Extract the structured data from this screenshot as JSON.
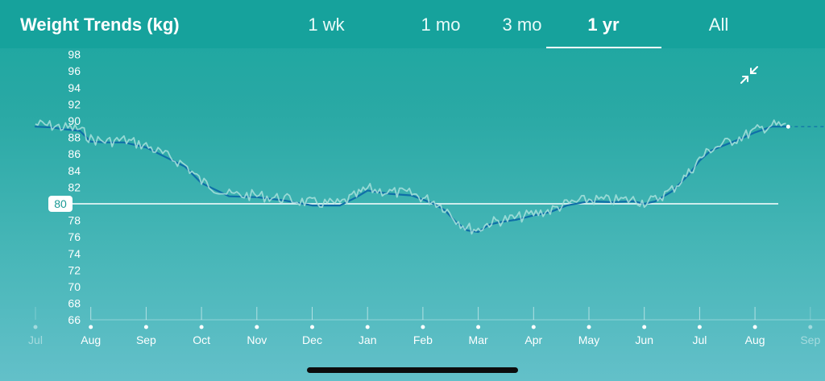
{
  "header": {
    "title": "Weight Trends (kg)",
    "tabs": [
      {
        "label": "1 wk",
        "active": false
      },
      {
        "label": "1 mo",
        "active": false
      },
      {
        "label": "3 mo",
        "active": false
      },
      {
        "label": "1 yr",
        "active": true
      },
      {
        "label": "All",
        "active": false
      }
    ]
  },
  "controls": {
    "collapse_icon": "collapse-arrows-icon"
  },
  "colors": {
    "background_top": "#1aa69f",
    "background_bottom": "#63c0c9",
    "trend_line": "#0f6fa8",
    "raw_line": "#a8e0dc",
    "goal_line": "#ffffff",
    "goal_label_text": "#1b9a95"
  },
  "chart_data": {
    "type": "line",
    "ylim": [
      65,
      99
    ],
    "y_ticks": [
      66,
      68,
      70,
      72,
      74,
      76,
      78,
      80,
      82,
      84,
      86,
      88,
      90,
      92,
      94,
      96,
      98
    ],
    "x_ticks": [
      "Jul",
      "Aug",
      "Sep",
      "Oct",
      "Nov",
      "Dec",
      "Jan",
      "Feb",
      "Mar",
      "Apr",
      "May",
      "Jun",
      "Jul",
      "Aug",
      "Sep"
    ],
    "x_ticks_faded": [
      0,
      14
    ],
    "goal": {
      "value": 80,
      "label": "80"
    },
    "series": [
      {
        "style": "trend",
        "x": [
          0,
          0.3,
          0.5,
          0.8,
          1.0,
          1.3,
          1.6,
          2.0,
          2.3,
          2.7,
          3.0,
          3.5,
          4.0,
          4.5,
          5.0,
          5.5,
          5.8,
          6.0,
          6.4,
          6.8,
          7.0,
          7.2,
          7.4,
          7.6,
          7.8,
          8.0,
          8.2,
          8.4,
          8.7,
          9.0,
          9.3,
          9.6,
          10.0,
          10.4,
          10.8,
          11.0,
          11.2,
          11.5,
          11.8,
          12.0,
          12.2,
          12.5,
          12.8,
          13.0,
          13.3,
          13.6
        ],
        "values": [
          89.3,
          89.2,
          89.0,
          88.8,
          87.5,
          87.4,
          87.4,
          86.8,
          85.8,
          84.5,
          82.5,
          80.9,
          80.8,
          80.4,
          79.8,
          79.8,
          80.8,
          81.6,
          81.2,
          81.0,
          80.5,
          80.0,
          79.2,
          77.8,
          76.8,
          76.6,
          77.5,
          77.8,
          78.1,
          78.6,
          79.0,
          79.8,
          80.3,
          80.2,
          80.3,
          80.0,
          80.3,
          81.5,
          83.5,
          85.2,
          86.4,
          87.2,
          88.0,
          88.6,
          89.3,
          89.3
        ]
      },
      {
        "style": "raw",
        "x": [
          0,
          0.3,
          0.5,
          0.8,
          1.0,
          1.3,
          1.6,
          2.0,
          2.3,
          2.7,
          3.0,
          3.5,
          4.0,
          4.5,
          5.0,
          5.5,
          5.8,
          6.0,
          6.4,
          6.8,
          7.0,
          7.2,
          7.4,
          7.6,
          7.8,
          8.0,
          8.2,
          8.4,
          8.7,
          9.0,
          9.3,
          9.6,
          10.0,
          10.4,
          10.8,
          11.0,
          11.2,
          11.5,
          11.8,
          12.0,
          12.2,
          12.5,
          12.8,
          13.0,
          13.3,
          13.6
        ],
        "values": [
          89.6,
          89.4,
          89.2,
          89.0,
          87.8,
          87.5,
          87.7,
          87.0,
          86.0,
          84.7,
          82.7,
          81.1,
          81.0,
          80.6,
          80.1,
          80.0,
          81.0,
          81.8,
          81.4,
          81.2,
          80.7,
          80.3,
          79.5,
          78.1,
          77.1,
          76.9,
          77.7,
          78.0,
          78.3,
          78.8,
          79.2,
          80.0,
          80.5,
          80.4,
          80.5,
          80.2,
          80.5,
          81.7,
          83.7,
          85.4,
          86.6,
          87.4,
          88.2,
          88.8,
          89.5,
          89.3
        ]
      }
    ]
  }
}
